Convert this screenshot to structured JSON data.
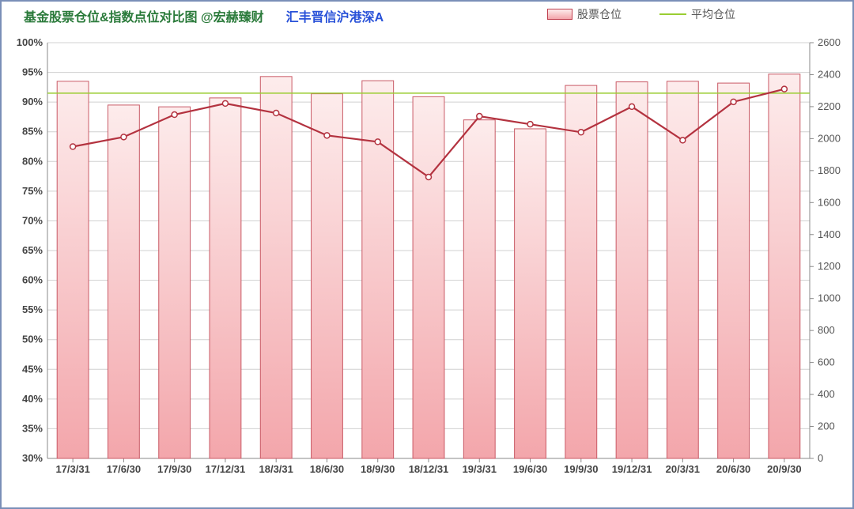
{
  "title": {
    "main": "基金股票仓位&指数点位对比图    @宏赫臻财",
    "sub": "汇丰晋信沪港深A",
    "main_color": "#2a7a3a",
    "sub_color": "#2851d8"
  },
  "legend": {
    "bar_label": "股票仓位",
    "line_label": "平均仓位",
    "bar_border": "#c04050",
    "line_color": "#9acd32"
  },
  "chart": {
    "type": "bar+line",
    "categories": [
      "17/3/31",
      "17/6/30",
      "17/9/30",
      "17/12/31",
      "18/3/31",
      "18/6/30",
      "18/9/30",
      "18/12/31",
      "19/3/31",
      "19/6/30",
      "19/9/30",
      "19/12/31",
      "20/3/31",
      "20/6/30",
      "20/9/30"
    ],
    "bar_values_pct": [
      93.5,
      89.5,
      89.2,
      90.7,
      94.3,
      91.4,
      93.6,
      90.9,
      87.0,
      85.5,
      92.8,
      93.4,
      93.5,
      93.2,
      94.7
    ],
    "line_values_idx": [
      1950,
      2010,
      2150,
      2220,
      2160,
      2020,
      1980,
      1760,
      2140,
      2090,
      2040,
      2200,
      1990,
      2230,
      2310
    ],
    "avg_line_pct": 91.5,
    "y_left": {
      "min": 30,
      "max": 100,
      "step": 5,
      "suffix": "%"
    },
    "y_right": {
      "min": 0,
      "max": 2600,
      "step": 200
    },
    "bar_fill_top": "#fdecec",
    "bar_fill_bottom": "#f3a6ab",
    "bar_border": "#c95a66",
    "bar_width": 0.62,
    "line_color": "#b3323f",
    "line_width": 2.2,
    "marker_radius": 3.5,
    "marker_fill": "#ffffff",
    "marker_stroke": "#b3323f",
    "avg_line_color": "#9acd32",
    "avg_line_width": 1.5,
    "grid_color": "#d0d0d0",
    "axis_color": "#888",
    "background": "#ffffff",
    "label_fontsize": 13
  }
}
